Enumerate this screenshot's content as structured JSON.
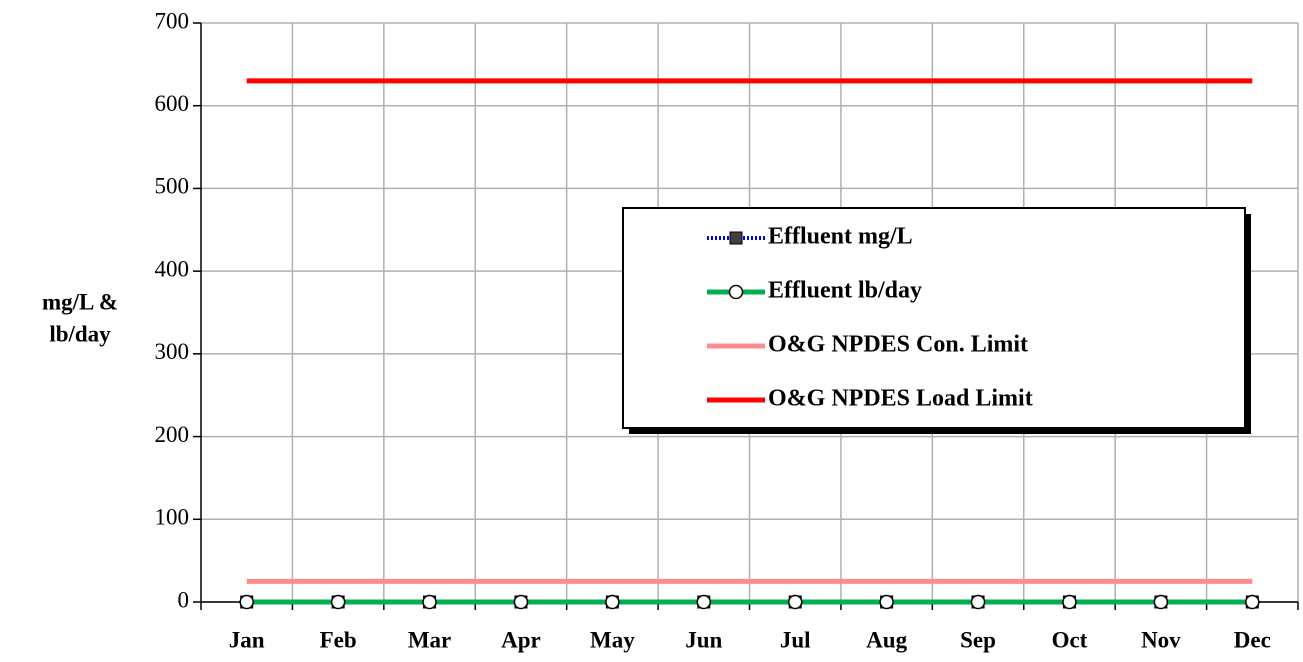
{
  "chart_data": {
    "type": "line",
    "y_label": [
      "mg/L &",
      "lb/day"
    ],
    "categories": [
      "Jan",
      "Feb",
      "Mar",
      "Apr",
      "May",
      "Jun",
      "Jul",
      "Aug",
      "Sep",
      "Oct",
      "Nov",
      "Dec"
    ],
    "series": [
      {
        "name": "Effluent mg/L",
        "color": "#0000ff",
        "marker": "square",
        "values": [
          0,
          0,
          0,
          0,
          0,
          0,
          0,
          0,
          0,
          0,
          0,
          0
        ]
      },
      {
        "name": "Effluent lb/day",
        "color": "#00b050",
        "marker": "circle",
        "values": [
          0,
          0,
          0,
          0,
          0,
          0,
          0,
          0,
          0,
          0,
          0,
          0
        ]
      },
      {
        "name": "O&G NPDES Con. Limit",
        "color": "#ff8c8c",
        "values": [
          25,
          25,
          25,
          25,
          25,
          25,
          25,
          25,
          25,
          25,
          25,
          25
        ]
      },
      {
        "name": "O&G NPDES Load Limit",
        "color": "#ff0000",
        "values": [
          630,
          630,
          630,
          630,
          630,
          630,
          630,
          630,
          630,
          630,
          630,
          630
        ]
      }
    ],
    "ylim": [
      0,
      700
    ],
    "yticks": [
      0,
      100,
      200,
      300,
      400,
      500,
      600,
      700
    ],
    "grid": true,
    "legend": "right"
  }
}
